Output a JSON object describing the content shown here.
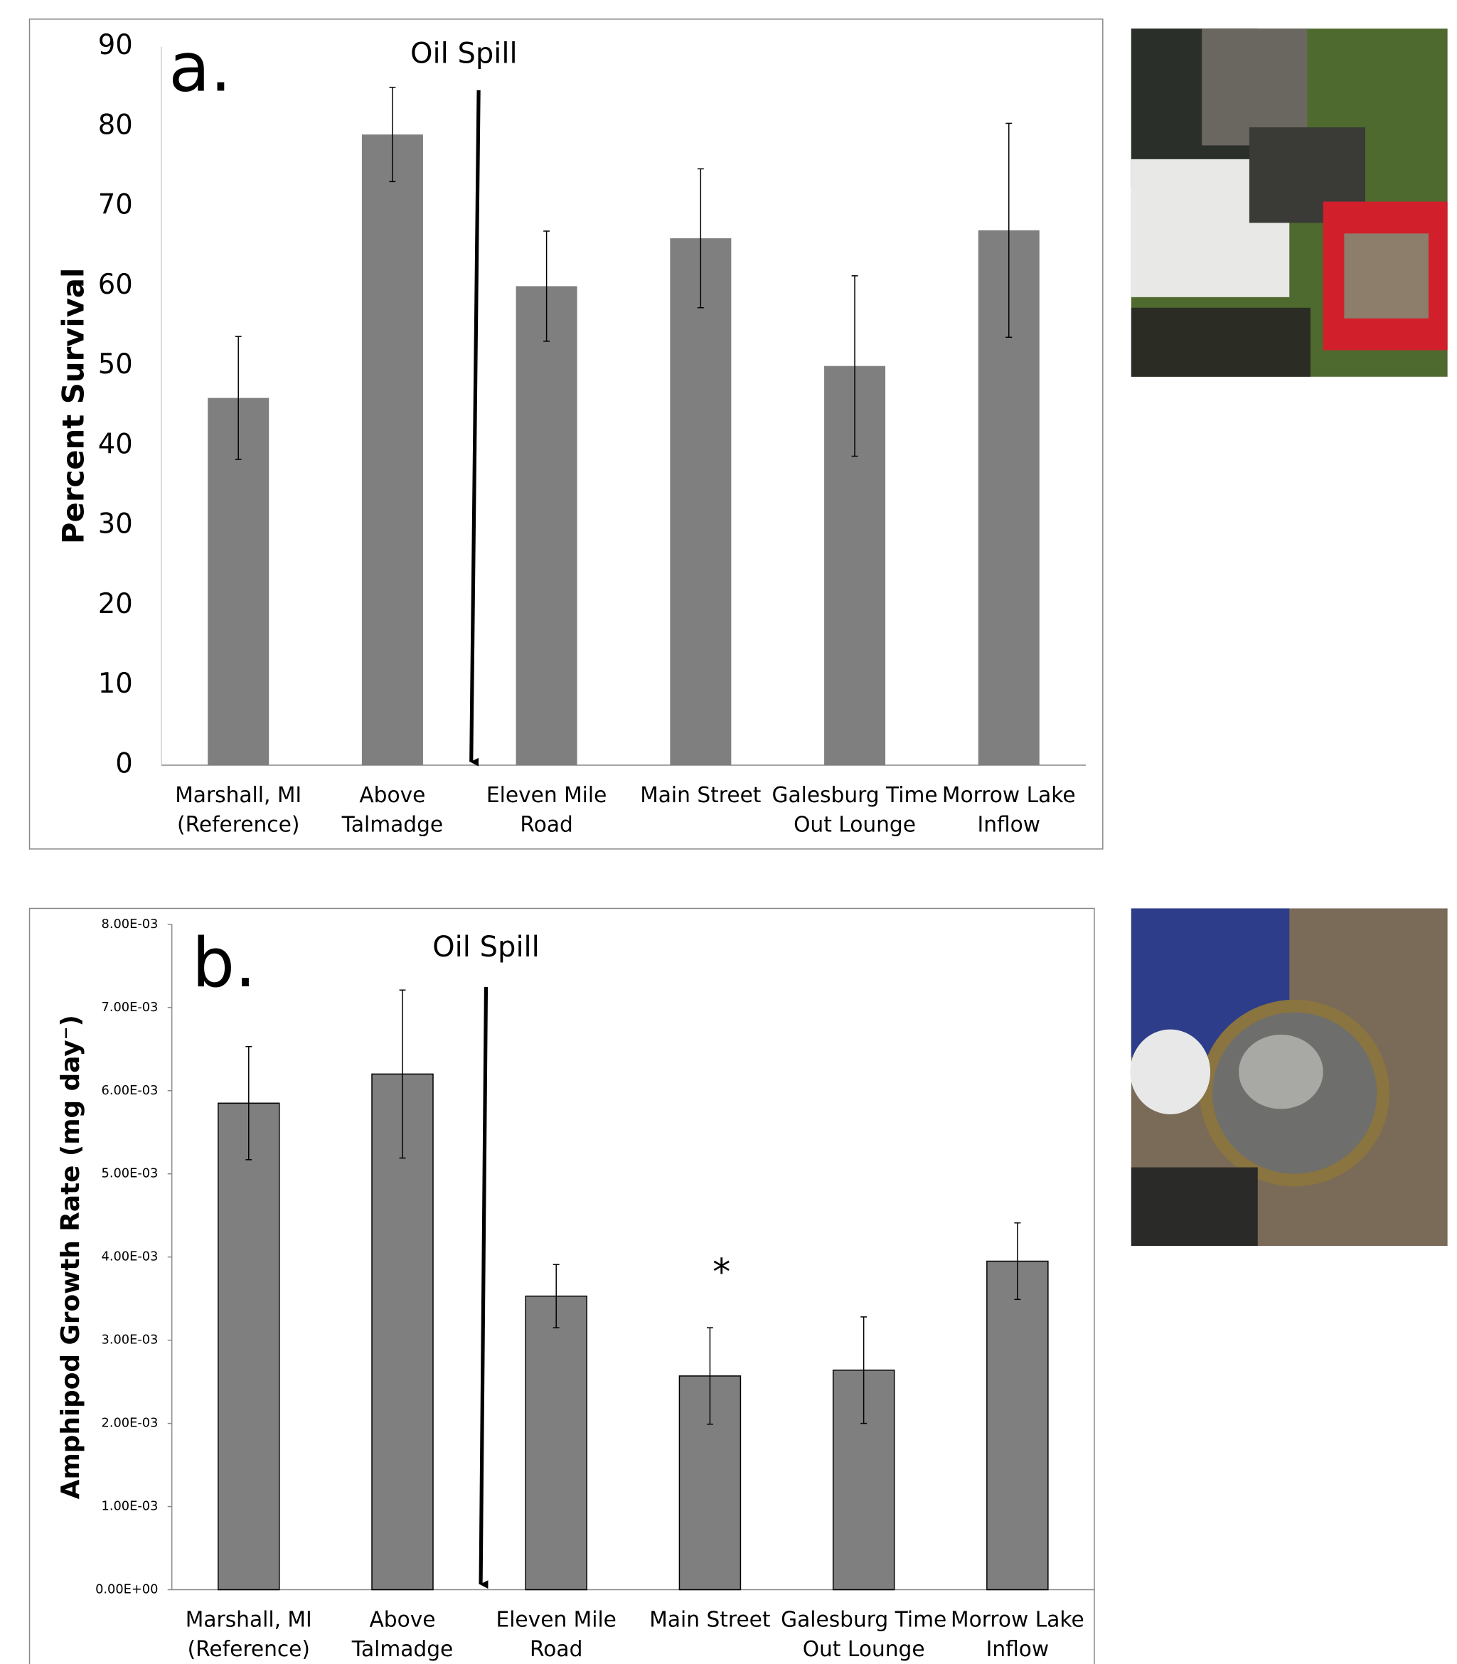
{
  "chart_data": [
    {
      "type": "bar",
      "panel_label": "a.",
      "annotation": "Oil Spill",
      "y_label": "Percent Survival",
      "categories": [
        [
          "Marshall, MI",
          "(Reference)"
        ],
        [
          "Above",
          "Talmadge"
        ],
        [
          "Eleven Mile",
          "Road"
        ],
        [
          "Main Street"
        ],
        [
          "Galesburg Time",
          "Out Lounge"
        ],
        [
          "Morrow Lake",
          "Inflow"
        ]
      ],
      "values": [
        46,
        79,
        60,
        66,
        50,
        67
      ],
      "errors": [
        7.7,
        5.9,
        6.9,
        8.7,
        11.3,
        13.4
      ],
      "color": "#7f7f7f",
      "ylim": [
        0,
        90
      ],
      "yticks": [
        0,
        10,
        20,
        30,
        40,
        50,
        60,
        70,
        80,
        90
      ]
    },
    {
      "type": "bar",
      "panel_label": "b.",
      "annotation": "Oil Spill",
      "y_label": "Amphipod Growth Rate (mg day⁻)",
      "categories": [
        [
          "Marshall, MI",
          "(Reference)"
        ],
        [
          "Above",
          "Talmadge"
        ],
        [
          "Eleven Mile",
          "Road"
        ],
        [
          "Main Street"
        ],
        [
          "Galesburg Time",
          "Out Lounge"
        ],
        [
          "Morrow Lake",
          "Inflow"
        ]
      ],
      "values": [
        0.00585,
        0.0062,
        0.00353,
        0.00257,
        0.00264,
        0.00395
      ],
      "errors": [
        0.00068,
        0.00101,
        0.00038,
        0.00058,
        0.00064,
        0.00046
      ],
      "significance": [
        "",
        "",
        "",
        "*",
        "",
        ""
      ],
      "color": "#7f7f7f",
      "ylim": [
        0,
        0.008
      ],
      "yticks": [
        {
          "value": 0,
          "label": "0.00E+00"
        },
        {
          "value": 0.001,
          "label": "1.00E-03"
        },
        {
          "value": 0.002,
          "label": "2.00E-03"
        },
        {
          "value": 0.003,
          "label": "3.00E-03"
        },
        {
          "value": 0.004,
          "label": "4.00E-03"
        },
        {
          "value": 0.005,
          "label": "5.00E-03"
        },
        {
          "value": 0.006,
          "label": "6.00E-03"
        },
        {
          "value": 0.007,
          "label": "7.00E-03"
        },
        {
          "value": 0.008,
          "label": "8.00E-03"
        }
      ]
    }
  ]
}
